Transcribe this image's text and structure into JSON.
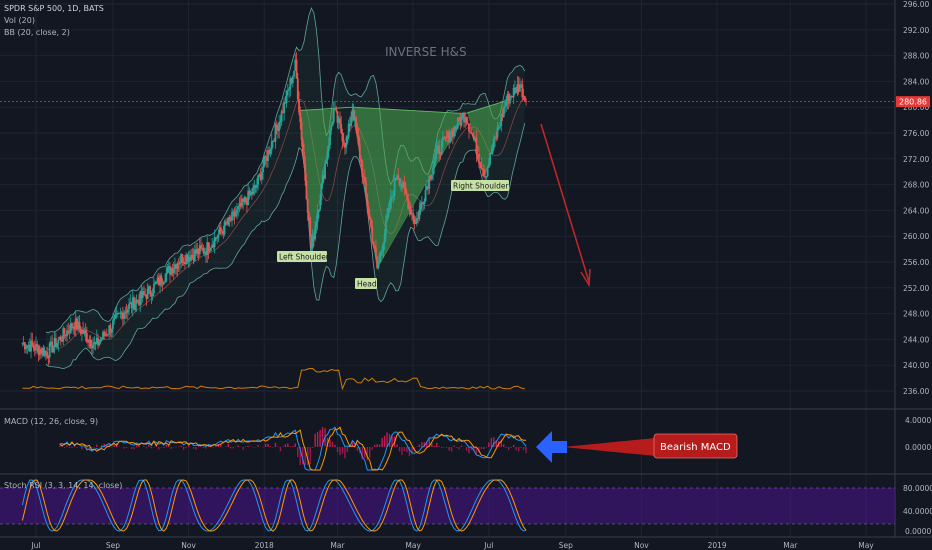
{
  "header": {
    "symbol_line": "SPDR S&P 500, 1D, BATS",
    "vol_label": "Vol (20)",
    "bb_label": "BB (20, close, 2)"
  },
  "annotations": {
    "pattern_title": "INVERSE H&S",
    "left_shoulder": "Left Shoulder",
    "head": "Head",
    "right_shoulder": "Right Shoulder",
    "bearish_macd": "Bearish MACD"
  },
  "panels": {
    "macd_label": "MACD (12, 26, close, 9)",
    "stoch_label": "Stoch RSI (3, 3, 14, 14, close)"
  },
  "colors": {
    "background": "#131722",
    "up_candle": "#26a69a",
    "down_candle": "#ef5350",
    "pattern_fill": "#4caf50",
    "price_line": "#e53935",
    "arrow_red": "#c62828",
    "arrow_blue": "#2962ff",
    "macd_line": "#2196f3",
    "signal_line": "#ff9800",
    "stoch_band": "#6a1b9a"
  },
  "chart_data": {
    "type": "candlestick",
    "title": "SPDR S&P 500, 1D, BATS",
    "x_tick_labels": [
      "Jul",
      "Sep",
      "Nov",
      "2018",
      "Mar",
      "May",
      "Jul",
      "Sep",
      "Nov",
      "2019",
      "Mar",
      "May"
    ],
    "price_axis": {
      "ticks": [
        236,
        240,
        244,
        248,
        252,
        256,
        260,
        264,
        268,
        272,
        276,
        280,
        284,
        288,
        292,
        296
      ],
      "tick_labels": [
        "236.00",
        "240.00",
        "244.00",
        "248.00",
        "252.00",
        "256.00",
        "260.00",
        "264.00",
        "268.00",
        "272.00",
        "276.00",
        "280.00",
        "284.00",
        "288.00",
        "292.00",
        "296.00"
      ],
      "current_price_label": "280.86",
      "current_price": 280.86,
      "ylim": [
        234,
        297
      ]
    },
    "price_path": [
      {
        "x": "2017-06-20",
        "y": 243.5
      },
      {
        "x": "2017-07-10",
        "y": 242.0
      },
      {
        "x": "2017-08-01",
        "y": 246.5
      },
      {
        "x": "2017-08-18",
        "y": 243.0
      },
      {
        "x": "2017-09-10",
        "y": 248.5
      },
      {
        "x": "2017-10-01",
        "y": 251.5
      },
      {
        "x": "2017-10-25",
        "y": 256.5
      },
      {
        "x": "2017-11-15",
        "y": 258.0
      },
      {
        "x": "2017-12-05",
        "y": 262.5
      },
      {
        "x": "2017-12-25",
        "y": 267.5
      },
      {
        "x": "2018-01-15",
        "y": 279.0
      },
      {
        "x": "2018-01-26",
        "y": 286.5
      },
      {
        "x": "2018-02-08",
        "y": 258.0
      },
      {
        "x": "2018-02-26",
        "y": 279.5
      },
      {
        "x": "2018-03-08",
        "y": 274.0
      },
      {
        "x": "2018-03-13",
        "y": 280.0
      },
      {
        "x": "2018-04-02",
        "y": 255.0
      },
      {
        "x": "2018-04-18",
        "y": 270.0
      },
      {
        "x": "2018-05-03",
        "y": 262.0
      },
      {
        "x": "2018-05-20",
        "y": 273.0
      },
      {
        "x": "2018-06-12",
        "y": 279.0
      },
      {
        "x": "2018-06-28",
        "y": 269.5
      },
      {
        "x": "2018-07-15",
        "y": 281.0
      },
      {
        "x": "2018-07-26",
        "y": 283.5
      },
      {
        "x": "2018-07-31",
        "y": 280.9
      }
    ],
    "pattern_points": {
      "left_shoulder": {
        "x": "2018-02-08",
        "y": 258.0
      },
      "head": {
        "x": "2018-04-02",
        "y": 255.0
      },
      "right_shoulder": {
        "x": "2018-06-28",
        "y": 269.5
      }
    },
    "macd": {
      "label": "MACD (12, 26, close, 9)",
      "tick_labels": [
        "4.0000",
        "0.0000"
      ],
      "ticks": [
        4,
        0
      ]
    },
    "stoch_rsi": {
      "label": "Stoch RSI (3, 3, 14, 14, close)",
      "tick_labels": [
        "80.0000",
        "40.0000",
        "0.0000"
      ],
      "ticks": [
        80,
        40,
        0
      ]
    }
  }
}
